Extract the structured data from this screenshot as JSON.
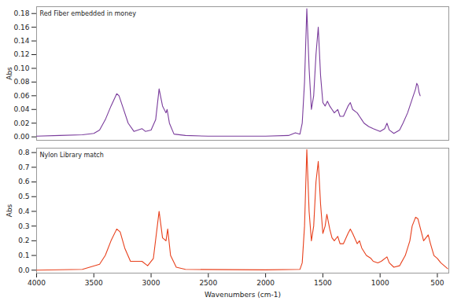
{
  "chart_data": [
    {
      "type": "line",
      "title": "Red Fiber embedded in money",
      "y_label": "Abs",
      "color": "#7a3c9c",
      "tick_labels": "y",
      "xlim": [
        4000,
        400
      ],
      "ylim": [
        -0.005,
        0.19
      ],
      "yticks": [
        {
          "value": 0,
          "label": "0.00"
        },
        0.02,
        0.04,
        0.06,
        0.08,
        {
          "value": 0.1,
          "label": "0.10"
        },
        0.12,
        0.14,
        0.16,
        0.18
      ],
      "x": [
        4000,
        3800,
        3600,
        3500,
        3450,
        3400,
        3350,
        3300,
        3280,
        3250,
        3200,
        3150,
        3080,
        3050,
        3000,
        2960,
        2930,
        2900,
        2870,
        2860,
        2840,
        2800,
        2700,
        2500,
        2000,
        1800,
        1740,
        1700,
        1680,
        1660,
        1640,
        1620,
        1600,
        1580,
        1560,
        1540,
        1520,
        1500,
        1480,
        1460,
        1440,
        1420,
        1400,
        1370,
        1350,
        1320,
        1280,
        1260,
        1240,
        1200,
        1180,
        1160,
        1140,
        1100,
        1060,
        1000,
        960,
        940,
        920,
        880,
        830,
        800,
        760,
        720,
        690,
        680,
        670,
        660,
        650
      ],
      "values": [
        0.001,
        0.002,
        0.003,
        0.005,
        0.01,
        0.025,
        0.045,
        0.063,
        0.06,
        0.045,
        0.02,
        0.008,
        0.012,
        0.008,
        0.01,
        0.025,
        0.07,
        0.045,
        0.035,
        0.04,
        0.02,
        0.004,
        0.002,
        0.001,
        0.001,
        0.002,
        0.006,
        0.004,
        0.02,
        0.08,
        0.187,
        0.1,
        0.04,
        0.06,
        0.12,
        0.16,
        0.09,
        0.05,
        0.045,
        0.052,
        0.045,
        0.04,
        0.035,
        0.04,
        0.03,
        0.03,
        0.045,
        0.05,
        0.04,
        0.035,
        0.03,
        0.025,
        0.02,
        0.015,
        0.012,
        0.008,
        0.012,
        0.02,
        0.01,
        0.005,
        0.01,
        0.02,
        0.035,
        0.055,
        0.07,
        0.078,
        0.075,
        0.065,
        0.06
      ]
    },
    {
      "type": "line",
      "title": "Nylon Library match",
      "y_label": "Abs",
      "x_label": "Wavenumbers (cm-1)",
      "color": "#e8401c",
      "xlim": [
        4000,
        400
      ],
      "xticks": [
        4000,
        3500,
        3000,
        2500,
        2000,
        1500,
        1000,
        500
      ],
      "ylim": [
        -0.02,
        0.83
      ],
      "yticks": [
        {
          "value": 0,
          "label": "0.0"
        },
        0.1,
        0.2,
        0.3,
        0.4,
        0.5,
        0.6,
        0.7,
        0.8
      ],
      "x": [
        4000,
        3600,
        3450,
        3400,
        3350,
        3300,
        3270,
        3230,
        3180,
        3080,
        3030,
        2980,
        2930,
        2900,
        2870,
        2855,
        2830,
        2780,
        2700,
        2000,
        1700,
        1680,
        1660,
        1640,
        1620,
        1600,
        1580,
        1560,
        1540,
        1520,
        1500,
        1480,
        1465,
        1440,
        1420,
        1400,
        1370,
        1350,
        1320,
        1280,
        1260,
        1240,
        1200,
        1180,
        1160,
        1120,
        1080,
        1060,
        1020,
        990,
        940,
        920,
        880,
        830,
        780,
        740,
        720,
        690,
        670,
        640,
        620,
        600,
        580,
        560,
        530,
        500,
        470,
        440,
        410
      ],
      "values": [
        0.0,
        0.005,
        0.04,
        0.1,
        0.2,
        0.28,
        0.26,
        0.15,
        0.06,
        0.06,
        0.03,
        0.08,
        0.4,
        0.22,
        0.2,
        0.28,
        0.1,
        0.02,
        0.005,
        0.002,
        0.005,
        0.05,
        0.3,
        0.82,
        0.4,
        0.2,
        0.3,
        0.6,
        0.74,
        0.45,
        0.25,
        0.3,
        0.38,
        0.28,
        0.22,
        0.2,
        0.23,
        0.18,
        0.18,
        0.25,
        0.28,
        0.25,
        0.18,
        0.2,
        0.15,
        0.1,
        0.08,
        0.06,
        0.05,
        0.06,
        0.09,
        0.05,
        0.02,
        0.03,
        0.1,
        0.2,
        0.3,
        0.36,
        0.35,
        0.26,
        0.2,
        0.22,
        0.24,
        0.18,
        0.1,
        0.08,
        0.05,
        0.03,
        0.01
      ]
    }
  ]
}
